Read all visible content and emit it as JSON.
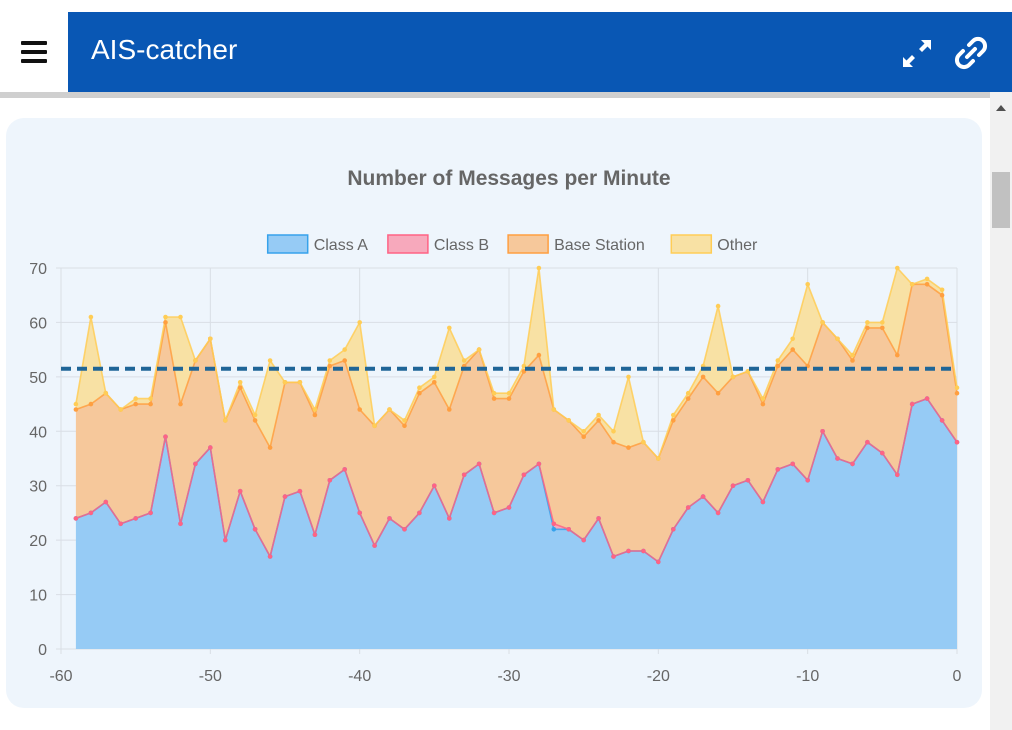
{
  "header": {
    "title": "AIS-catcher",
    "colors": {
      "bar": "#0957b4",
      "text": "#ffffff"
    },
    "icons": [
      "menu-icon",
      "fullscreen-icon",
      "link-icon"
    ]
  },
  "chart_data": {
    "type": "area",
    "stacked": true,
    "title": "Number of Messages per Minute",
    "xlabel": "",
    "ylabel": "",
    "xlim": [
      -60,
      0
    ],
    "ylim": [
      0,
      70
    ],
    "xticks": [
      "-60",
      "-50",
      "-40",
      "-30",
      "-20",
      "-10",
      "0"
    ],
    "yticks": [
      "0",
      "10",
      "20",
      "30",
      "40",
      "50",
      "60",
      "70"
    ],
    "grid": true,
    "legend": "top-center",
    "average_line": 51.5,
    "x": [
      -59,
      -58,
      -57,
      -56,
      -55,
      -54,
      -53,
      -52,
      -51,
      -50,
      -49,
      -48,
      -47,
      -46,
      -45,
      -44,
      -43,
      -42,
      -41,
      -40,
      -39,
      -38,
      -37,
      -36,
      -35,
      -34,
      -33,
      -32,
      -31,
      -30,
      -29,
      -28,
      -27,
      -26,
      -25,
      -24,
      -23,
      -22,
      -21,
      -20,
      -19,
      -18,
      -17,
      -16,
      -15,
      -14,
      -13,
      -12,
      -11,
      -10,
      -9,
      -8,
      -7,
      -6,
      -5,
      -4,
      -3,
      -2,
      -1,
      0
    ],
    "series": [
      {
        "name": "Class A",
        "color": "#36a2eb",
        "fill": "#96cbf5",
        "values": [
          24,
          25,
          27,
          23,
          24,
          25,
          39,
          23,
          34,
          37,
          20,
          29,
          22,
          17,
          28,
          29,
          21,
          31,
          33,
          25,
          19,
          24,
          22,
          25,
          30,
          24,
          32,
          34,
          25,
          26,
          32,
          34,
          22,
          22,
          20,
          24,
          17,
          18,
          18,
          16,
          22,
          26,
          28,
          25,
          30,
          31,
          27,
          33,
          34,
          31,
          40,
          35,
          34,
          38,
          36,
          32,
          45,
          46,
          42,
          38
        ]
      },
      {
        "name": "Class B",
        "color": "#ff6384",
        "fill": "#f7a9bc",
        "values": [
          0,
          0,
          0,
          0,
          0,
          0,
          0,
          0,
          0,
          0,
          0,
          0,
          0,
          0,
          0,
          0,
          0,
          0,
          0,
          0,
          0,
          0,
          0,
          0,
          0,
          0,
          0,
          0,
          0,
          0,
          0,
          0,
          1,
          0,
          0,
          0,
          0,
          0,
          0,
          0,
          0,
          0,
          0,
          0,
          0,
          0,
          0,
          0,
          0,
          0,
          0,
          0,
          0,
          0,
          0,
          0,
          0,
          0,
          0,
          0
        ]
      },
      {
        "name": "Base Station",
        "color": "#ff9f40",
        "fill": "#f6c89b",
        "values": [
          20,
          20,
          20,
          21,
          21,
          20,
          21,
          22,
          19,
          20,
          22,
          19,
          20,
          20,
          21,
          20,
          22,
          21,
          20,
          19,
          22,
          20,
          19,
          22,
          19,
          20,
          20,
          21,
          21,
          20,
          19,
          20,
          21,
          20,
          19,
          18,
          21,
          19,
          20,
          19,
          20,
          20,
          22,
          22,
          20,
          20,
          18,
          19,
          21,
          21,
          20,
          22,
          19,
          21,
          23,
          22,
          22,
          21,
          23,
          9
        ]
      },
      {
        "name": "Other",
        "color": "#ffcd56",
        "fill": "#f8e1a4",
        "values": [
          1,
          16,
          0,
          0,
          1,
          1,
          1,
          16,
          0,
          0,
          0,
          1,
          1,
          16,
          0,
          0,
          1,
          1,
          2,
          16,
          0,
          0,
          1,
          1,
          1,
          15,
          1,
          0,
          1,
          1,
          1,
          16,
          0,
          0,
          1,
          1,
          2,
          13,
          0,
          0,
          1,
          1,
          2,
          16,
          0,
          0,
          1,
          1,
          2,
          15,
          0,
          0,
          1,
          1,
          1,
          16,
          0,
          1,
          1,
          1
        ]
      }
    ]
  }
}
